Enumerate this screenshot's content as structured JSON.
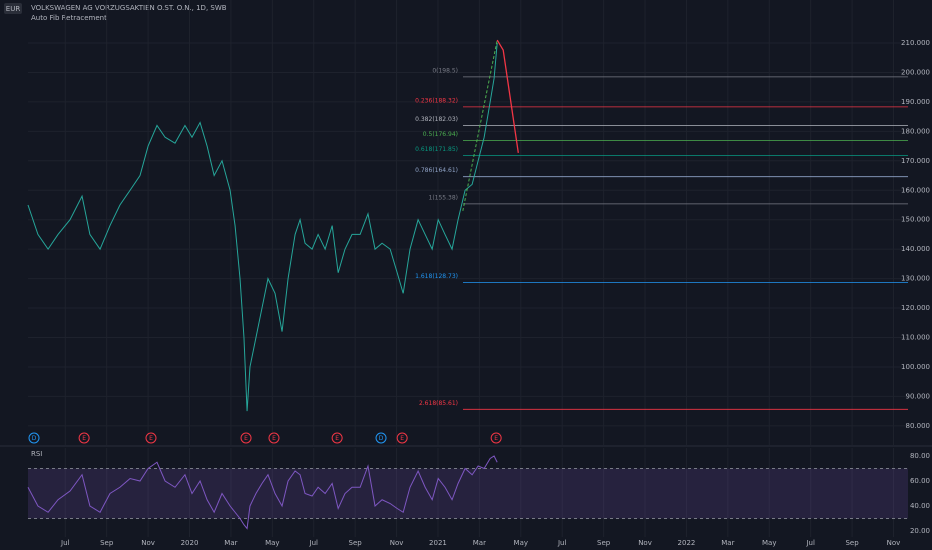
{
  "chart_data": [
    {
      "type": "line",
      "title": "VOLKSWAGEN AG VORZUGSAKTIEN O.ST. O.N., 1D, SWB",
      "subtitle": "Auto Fib Retracement",
      "currency": "EUR",
      "color": "#26a69a",
      "x": [
        4.2,
        4.68,
        5.17,
        5.65,
        6.23,
        6.81,
        7.19,
        7.68,
        8.16,
        8.64,
        9.13,
        9.61,
        10.0,
        10.43,
        10.82,
        11.3,
        11.78,
        12.12,
        12.51,
        12.85,
        13.19,
        13.57,
        13.96,
        14.2,
        14.44,
        14.63,
        14.78,
        14.92,
        15.21,
        15.5,
        15.79,
        16.13,
        16.47,
        16.76,
        17.1,
        17.34,
        17.58,
        17.92,
        18.21,
        18.55,
        18.89,
        19.18,
        19.51,
        19.85,
        20.24,
        20.62,
        20.96,
        21.3,
        21.69,
        22.03,
        22.32,
        22.65,
        23.04,
        23.38,
        23.72,
        24.01,
        24.34,
        24.68,
        24.97,
        25.31,
        25.65,
        25.94,
        26.23,
        26.52,
        26.71,
        26.86
      ],
      "values": [
        155,
        145,
        140,
        145,
        150,
        158,
        145,
        140,
        148,
        155,
        160,
        165,
        175,
        182,
        178,
        176,
        182,
        178,
        183,
        175,
        165,
        170,
        160,
        148,
        130,
        110,
        85,
        100,
        110,
        120,
        130,
        125,
        112,
        130,
        145,
        150,
        142,
        140,
        145,
        140,
        148,
        132,
        140,
        145,
        145,
        152,
        140,
        142,
        140,
        132,
        125,
        140,
        150,
        145,
        140,
        150,
        145,
        140,
        150,
        160,
        162,
        170,
        178,
        190,
        198,
        210
      ],
      "xlim": [
        4.2,
        46.7
      ],
      "ylim": [
        73.5,
        224.6
      ],
      "xticks": [
        {
          "value": 6,
          "label": "Jul"
        },
        {
          "value": 8,
          "label": "Sep"
        },
        {
          "value": 10,
          "label": "Nov"
        },
        {
          "value": 12,
          "label": "2020"
        },
        {
          "value": 14,
          "label": "Mar"
        },
        {
          "value": 16,
          "label": "May"
        },
        {
          "value": 18,
          "label": "Jul"
        },
        {
          "value": 20,
          "label": "Sep"
        },
        {
          "value": 22,
          "label": "Nov"
        },
        {
          "value": 24,
          "label": "2021"
        },
        {
          "value": 26,
          "label": "Mar"
        },
        {
          "value": 28,
          "label": "May"
        },
        {
          "value": 30,
          "label": "Jul"
        },
        {
          "value": 32,
          "label": "Sep"
        },
        {
          "value": 34,
          "label": "Nov"
        },
        {
          "value": 36,
          "label": "2022"
        },
        {
          "value": 38,
          "label": "Mar"
        },
        {
          "value": 40,
          "label": "May"
        },
        {
          "value": 42,
          "label": "Jul"
        },
        {
          "value": 44,
          "label": "Sep"
        },
        {
          "value": 46,
          "label": "Nov"
        }
      ],
      "yticks": [
        {
          "value": 80,
          "label": "80.000"
        },
        {
          "value": 90,
          "label": "90.000"
        },
        {
          "value": 100,
          "label": "100.000"
        },
        {
          "value": 110,
          "label": "110.000"
        },
        {
          "value": 120,
          "label": "120.000"
        },
        {
          "value": 130,
          "label": "130.000"
        },
        {
          "value": 140,
          "label": "140.000"
        },
        {
          "value": 150,
          "label": "150.000"
        },
        {
          "value": 160,
          "label": "160.000"
        },
        {
          "value": 170,
          "label": "170.000"
        },
        {
          "value": 180,
          "label": "180.000"
        },
        {
          "value": 190,
          "label": "190.000"
        },
        {
          "value": 200,
          "label": "200.000"
        },
        {
          "value": 210,
          "label": "210.000"
        }
      ],
      "grid": true,
      "fib_levels": [
        {
          "label": "0(198.5)",
          "value": 198.5,
          "color": "#787b86"
        },
        {
          "label": "0.236(188.32)",
          "value": 188.32,
          "color": "#f23645"
        },
        {
          "label": "0.382(182.03)",
          "value": 182.03,
          "color": "#b2b5be"
        },
        {
          "label": "0.5(176.94)",
          "value": 176.94,
          "color": "#4caf50"
        },
        {
          "label": "0.618(171.85)",
          "value": 171.85,
          "color": "#089981"
        },
        {
          "label": "0.786(164.61)",
          "value": 164.61,
          "color": "#90a4c8"
        },
        {
          "label": "1(155.38)",
          "value": 155.38,
          "color": "#787b86"
        },
        {
          "label": "1.618(128.73)",
          "value": 128.73,
          "color": "#2196f3"
        },
        {
          "label": "2.618(85.61)",
          "value": 85.61,
          "color": "#f23645"
        }
      ],
      "zigzag": {
        "x": [
          25.2,
          26.86
        ],
        "values": [
          153,
          211
        ],
        "color": "#4caf50"
      },
      "projection": {
        "x": [
          26.86,
          27.15,
          27.88
        ],
        "values": [
          211,
          207.6,
          172.7
        ],
        "color": "#f23645"
      },
      "events": [
        {
          "label": "D",
          "x": 4.49,
          "color": "#2196f3"
        },
        {
          "label": "E",
          "x": 6.91,
          "color": "#f23645"
        },
        {
          "label": "E",
          "x": 10.14,
          "color": "#f23645"
        },
        {
          "label": "E",
          "x": 14.73,
          "color": "#f23645"
        },
        {
          "label": "E",
          "x": 16.08,
          "color": "#f23645"
        },
        {
          "label": "E",
          "x": 19.13,
          "color": "#f23645"
        },
        {
          "label": "D",
          "x": 21.25,
          "color": "#2196f3"
        },
        {
          "label": "E",
          "x": 22.27,
          "color": "#f23645"
        },
        {
          "label": "E",
          "x": 26.81,
          "color": "#f23645"
        }
      ]
    },
    {
      "type": "line",
      "title": "RSI",
      "color": "#7e57c2",
      "x": [
        4.2,
        4.68,
        5.17,
        5.65,
        6.23,
        6.81,
        7.19,
        7.68,
        8.16,
        8.64,
        9.13,
        9.61,
        10.0,
        10.43,
        10.82,
        11.3,
        11.78,
        12.12,
        12.51,
        12.85,
        13.19,
        13.57,
        13.96,
        14.2,
        14.44,
        14.63,
        14.78,
        14.92,
        15.21,
        15.5,
        15.79,
        16.13,
        16.47,
        16.76,
        17.1,
        17.34,
        17.58,
        17.92,
        18.21,
        18.55,
        18.89,
        19.18,
        19.51,
        19.85,
        20.24,
        20.62,
        20.96,
        21.3,
        21.69,
        22.03,
        22.32,
        22.65,
        23.04,
        23.38,
        23.72,
        24.01,
        24.34,
        24.68,
        24.97,
        25.31,
        25.65,
        25.94,
        26.23,
        26.52,
        26.71,
        26.86
      ],
      "values": [
        55,
        40,
        35,
        45,
        52,
        65,
        40,
        35,
        50,
        55,
        62,
        60,
        70,
        75,
        60,
        55,
        65,
        50,
        60,
        45,
        35,
        50,
        40,
        35,
        30,
        25,
        22,
        40,
        50,
        58,
        65,
        50,
        40,
        60,
        68,
        65,
        50,
        48,
        55,
        50,
        58,
        38,
        50,
        55,
        55,
        72,
        40,
        45,
        42,
        38,
        35,
        55,
        68,
        55,
        45,
        62,
        55,
        45,
        58,
        70,
        65,
        72,
        70,
        78,
        80,
        75
      ],
      "xlim": [
        4.2,
        46.7
      ],
      "ylim": [
        15.2,
        86.4
      ],
      "yticks": [
        {
          "value": 20,
          "label": "20.00"
        },
        {
          "value": 40,
          "label": "40.00"
        },
        {
          "value": 60,
          "label": "60.00"
        },
        {
          "value": 80,
          "label": "80.00"
        }
      ],
      "bands": [
        30,
        70
      ]
    }
  ]
}
